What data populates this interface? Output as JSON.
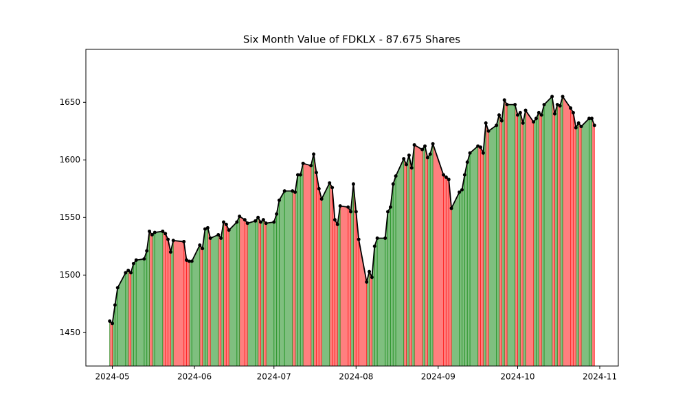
{
  "chart_data": {
    "type": "line",
    "title": "Six Month Value of FDKLX - 87.675 Shares",
    "x": [
      "2024-04-30",
      "2024-05-01",
      "2024-05-02",
      "2024-05-03",
      "2024-05-06",
      "2024-05-07",
      "2024-05-08",
      "2024-05-09",
      "2024-05-10",
      "2024-05-13",
      "2024-05-14",
      "2024-05-15",
      "2024-05-16",
      "2024-05-17",
      "2024-05-20",
      "2024-05-21",
      "2024-05-22",
      "2024-05-23",
      "2024-05-24",
      "2024-05-28",
      "2024-05-29",
      "2024-05-30",
      "2024-05-31",
      "2024-06-03",
      "2024-06-04",
      "2024-06-05",
      "2024-06-06",
      "2024-06-07",
      "2024-06-10",
      "2024-06-11",
      "2024-06-12",
      "2024-06-13",
      "2024-06-14",
      "2024-06-17",
      "2024-06-18",
      "2024-06-20",
      "2024-06-21",
      "2024-06-24",
      "2024-06-25",
      "2024-06-26",
      "2024-06-27",
      "2024-06-28",
      "2024-07-01",
      "2024-07-02",
      "2024-07-03",
      "2024-07-05",
      "2024-07-08",
      "2024-07-09",
      "2024-07-10",
      "2024-07-11",
      "2024-07-12",
      "2024-07-15",
      "2024-07-16",
      "2024-07-17",
      "2024-07-18",
      "2024-07-19",
      "2024-07-22",
      "2024-07-23",
      "2024-07-24",
      "2024-07-25",
      "2024-07-26",
      "2024-07-29",
      "2024-07-30",
      "2024-07-31",
      "2024-08-01",
      "2024-08-02",
      "2024-08-05",
      "2024-08-06",
      "2024-08-07",
      "2024-08-08",
      "2024-08-09",
      "2024-08-12",
      "2024-08-13",
      "2024-08-14",
      "2024-08-15",
      "2024-08-16",
      "2024-08-19",
      "2024-08-20",
      "2024-08-21",
      "2024-08-22",
      "2024-08-23",
      "2024-08-26",
      "2024-08-27",
      "2024-08-28",
      "2024-08-29",
      "2024-08-30",
      "2024-09-03",
      "2024-09-04",
      "2024-09-05",
      "2024-09-06",
      "2024-09-09",
      "2024-09-10",
      "2024-09-11",
      "2024-09-12",
      "2024-09-13",
      "2024-09-16",
      "2024-09-17",
      "2024-09-18",
      "2024-09-19",
      "2024-09-20",
      "2024-09-23",
      "2024-09-24",
      "2024-09-25",
      "2024-09-26",
      "2024-09-27",
      "2024-09-30",
      "2024-10-01",
      "2024-10-02",
      "2024-10-03",
      "2024-10-04",
      "2024-10-07",
      "2024-10-08",
      "2024-10-09",
      "2024-10-10",
      "2024-10-11",
      "2024-10-14",
      "2024-10-15",
      "2024-10-16",
      "2024-10-17",
      "2024-10-18",
      "2024-10-21",
      "2024-10-22",
      "2024-10-23",
      "2024-10-24",
      "2024-10-25",
      "2024-10-28",
      "2024-10-29",
      "2024-10-30"
    ],
    "values": [
      1460,
      1458,
      1474,
      1489,
      1502,
      1504,
      1502,
      1510,
      1513,
      1514,
      1521,
      1538,
      1535,
      1537,
      1538,
      1536,
      1531,
      1520,
      1530,
      1529,
      1513,
      1512,
      1512,
      1526,
      1523,
      1540,
      1541,
      1532,
      1535,
      1532,
      1546,
      1544,
      1539,
      1546,
      1551,
      1548,
      1545,
      1547,
      1550,
      1546,
      1548,
      1545,
      1546,
      1553,
      1565,
      1573,
      1573,
      1572,
      1587,
      1587,
      1597,
      1595,
      1605,
      1589,
      1575,
      1566,
      1580,
      1576,
      1548,
      1544,
      1560,
      1559,
      1555,
      1579,
      1555,
      1531,
      1494,
      1503,
      1498,
      1525,
      1532,
      1532,
      1555,
      1559,
      1579,
      1586,
      1601,
      1596,
      1604,
      1593,
      1613,
      1609,
      1612,
      1602,
      1605,
      1614,
      1587,
      1585,
      1583,
      1558,
      1572,
      1574,
      1587,
      1598,
      1606,
      1612,
      1611,
      1606,
      1632,
      1625,
      1630,
      1639,
      1634,
      1652,
      1648,
      1648,
      1639,
      1641,
      1632,
      1643,
      1633,
      1636,
      1641,
      1639,
      1648,
      1655,
      1640,
      1648,
      1647,
      1655,
      1645,
      1641,
      1628,
      1632,
      1629,
      1636,
      1636,
      1630
    ],
    "color": "#000000",
    "up_color": "#008000",
    "down_color": "#ff0000",
    "xlim": [
      "2024-04-21",
      "2024-11-08"
    ],
    "xticks": [
      {
        "value": "2024-05-01",
        "label": "2024-05"
      },
      {
        "value": "2024-06-01",
        "label": "2024-06"
      },
      {
        "value": "2024-07-01",
        "label": "2024-07"
      },
      {
        "value": "2024-08-01",
        "label": "2024-08"
      },
      {
        "value": "2024-09-01",
        "label": "2024-09"
      },
      {
        "value": "2024-10-01",
        "label": "2024-10"
      },
      {
        "value": "2024-11-01",
        "label": "2024-11"
      }
    ],
    "ylim": [
      1421,
      1696
    ],
    "yticks": [
      1450,
      1500,
      1550,
      1600,
      1650
    ],
    "grid": false
  }
}
